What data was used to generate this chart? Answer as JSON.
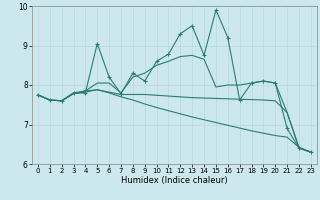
{
  "xlabel": "Humidex (Indice chaleur)",
  "x_values": [
    0,
    1,
    2,
    3,
    4,
    5,
    6,
    7,
    8,
    9,
    10,
    11,
    12,
    13,
    14,
    15,
    16,
    17,
    18,
    19,
    20,
    21,
    22,
    23
  ],
  "series": [
    [
      7.75,
      7.62,
      7.6,
      7.8,
      7.8,
      9.05,
      8.2,
      7.78,
      8.3,
      8.1,
      8.6,
      8.78,
      9.3,
      9.5,
      8.75,
      9.9,
      9.2,
      7.62,
      8.05,
      8.1,
      8.05,
      6.9,
      6.4,
      6.3
    ],
    [
      7.75,
      7.62,
      7.6,
      7.8,
      7.85,
      8.05,
      8.05,
      7.8,
      8.2,
      8.3,
      8.5,
      8.6,
      8.72,
      8.75,
      8.65,
      7.95,
      8.0,
      8.0,
      8.05,
      8.1,
      8.05,
      7.3,
      6.4,
      6.3
    ],
    [
      7.75,
      7.62,
      7.6,
      7.78,
      7.82,
      7.88,
      7.82,
      7.76,
      7.76,
      7.76,
      7.74,
      7.72,
      7.7,
      7.68,
      7.67,
      7.66,
      7.65,
      7.64,
      7.63,
      7.62,
      7.6,
      7.3,
      6.42,
      6.3
    ],
    [
      7.75,
      7.62,
      7.6,
      7.78,
      7.85,
      7.88,
      7.8,
      7.7,
      7.62,
      7.52,
      7.43,
      7.35,
      7.27,
      7.19,
      7.12,
      7.05,
      6.98,
      6.91,
      6.84,
      6.78,
      6.72,
      6.68,
      6.42,
      6.3
    ]
  ],
  "line_color": "#2a7d6d",
  "background_color": "#cce8ee",
  "grid_color": "#b8d8e0",
  "ylim": [
    6.0,
    10.0
  ],
  "xlim": [
    -0.5,
    23.5
  ],
  "yticks": [
    6,
    7,
    8,
    9,
    10
  ],
  "xticks": [
    0,
    1,
    2,
    3,
    4,
    5,
    6,
    7,
    8,
    9,
    10,
    11,
    12,
    13,
    14,
    15,
    16,
    17,
    18,
    19,
    20,
    21,
    22,
    23
  ]
}
